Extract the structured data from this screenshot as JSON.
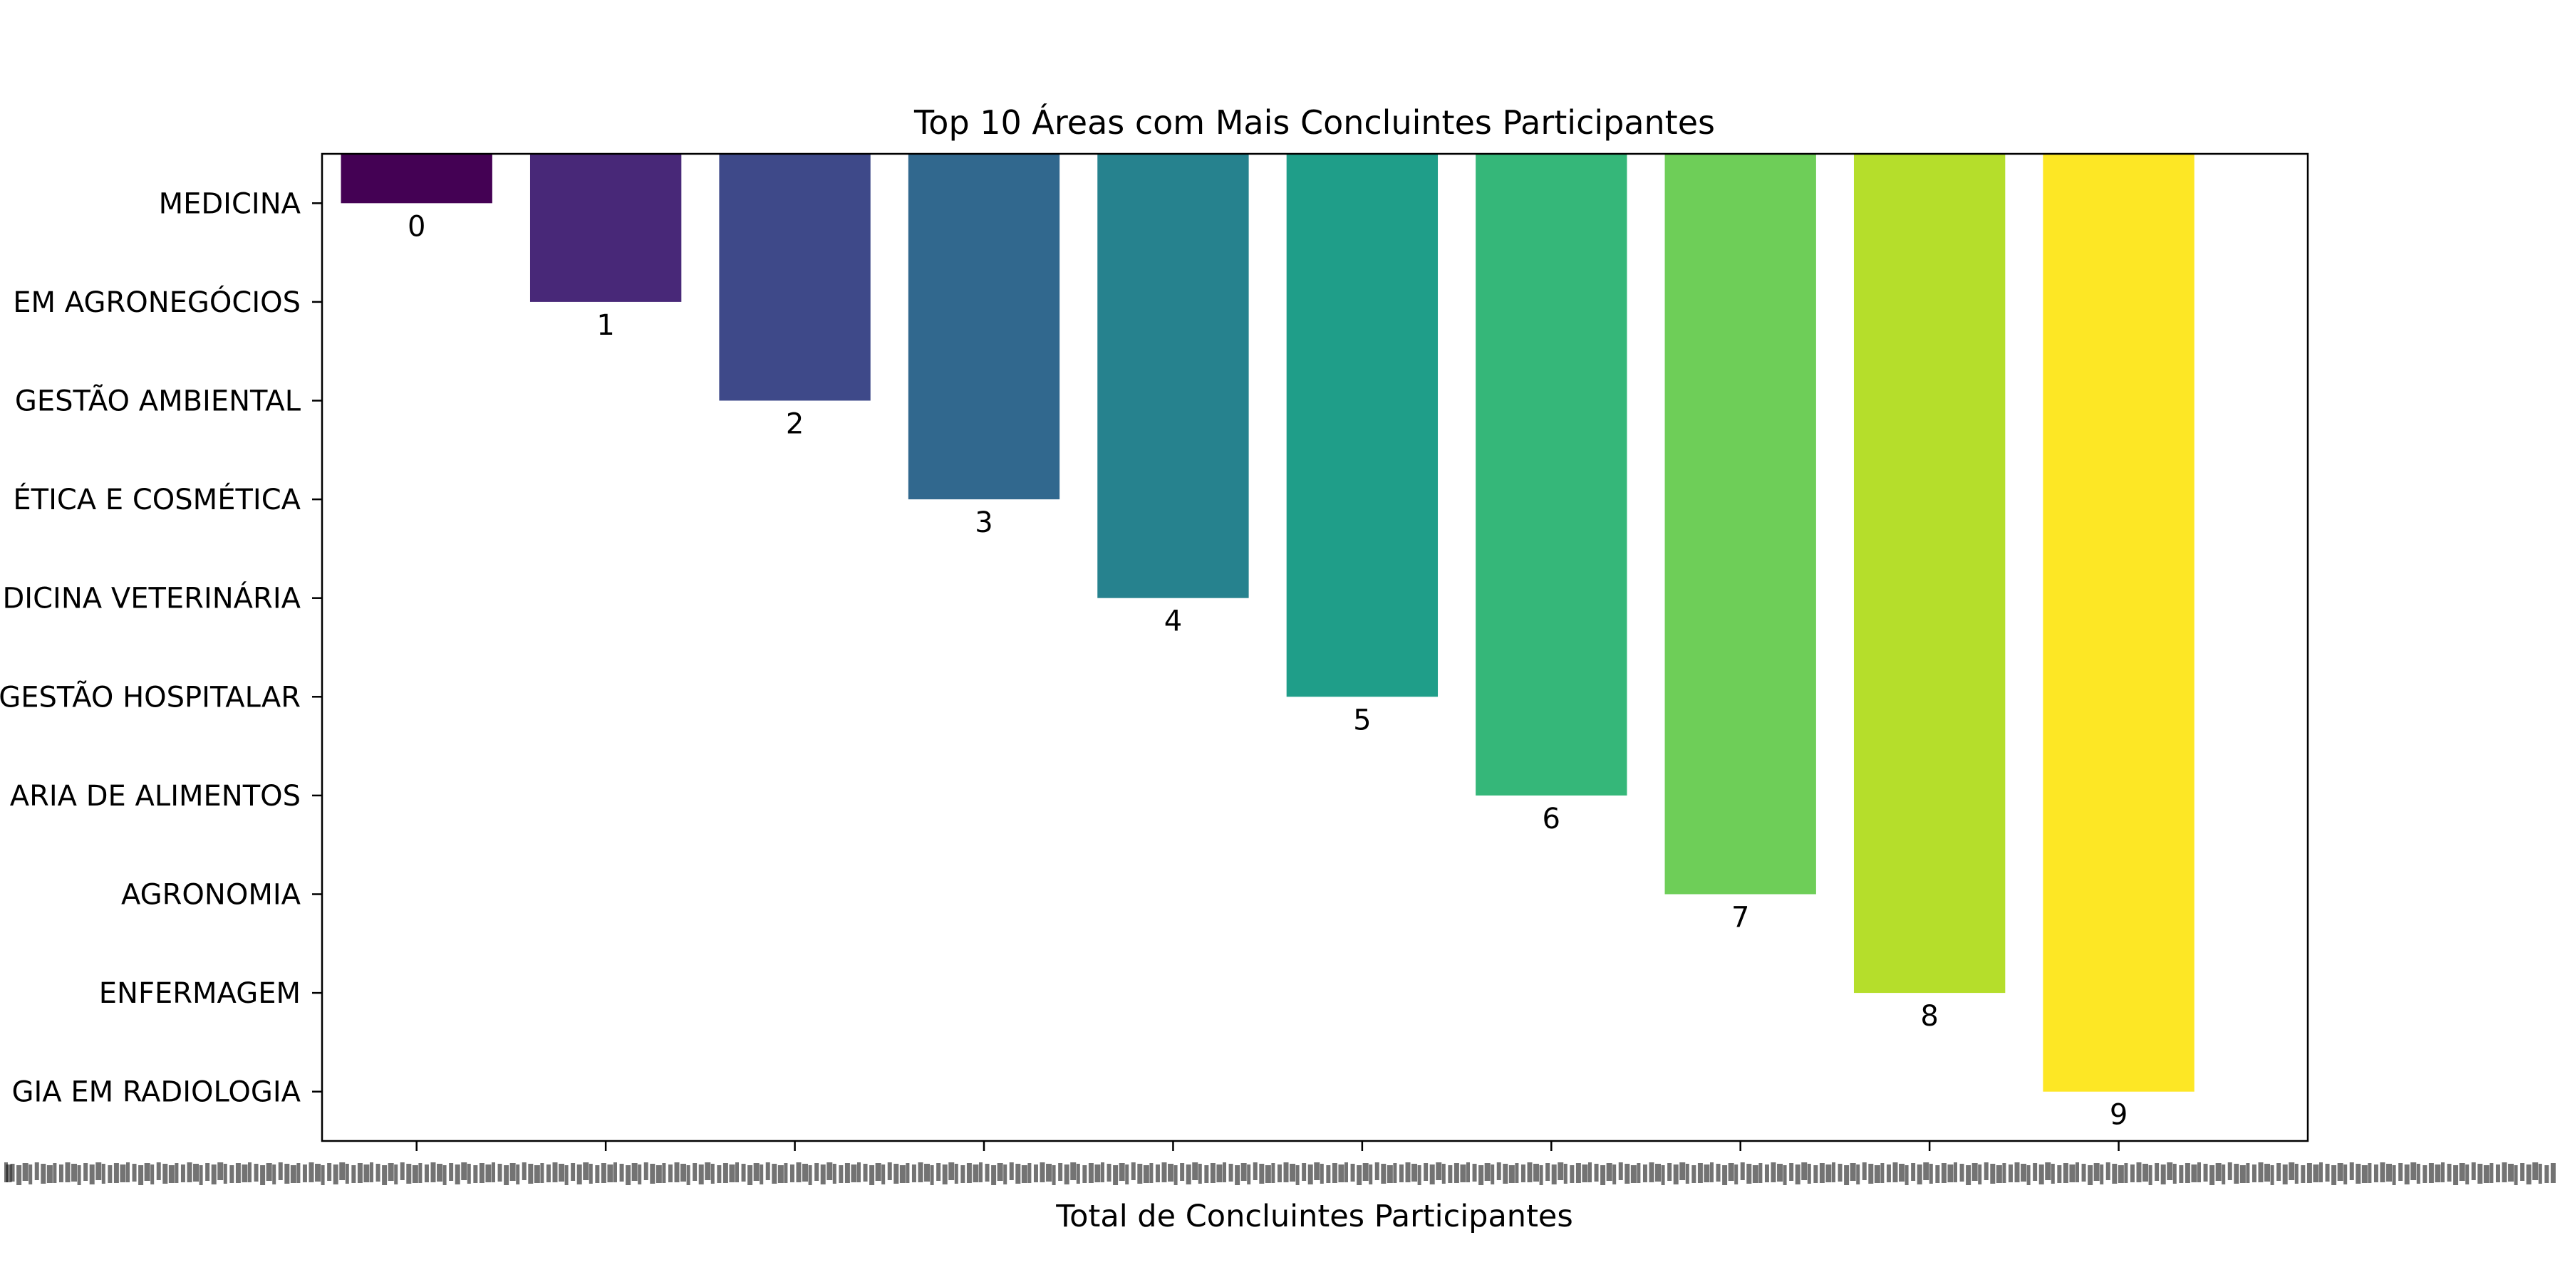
{
  "chart_data": {
    "type": "bar",
    "title": "Top 10 Áreas com Mais Concluintes Participantes",
    "xlabel": "Total de Concluintes Participantes",
    "ylabel": "",
    "categories": [
      "MEDICINA",
      "EM AGRONEGÓCIOS",
      "GESTÃO AMBIENTAL",
      "ÉTICA E COSMÉTICA",
      "DICINA VETERINÁRIA",
      "GESTÃO HOSPITALAR",
      "ARIA DE ALIMENTOS",
      "AGRONOMIA",
      "ENFERMAGEM",
      "GIA EM RADIOLOGIA"
    ],
    "values": [
      0,
      1,
      2,
      3,
      4,
      5,
      6,
      7,
      8,
      9
    ],
    "colors": [
      "#440154",
      "#482878",
      "#3e4989",
      "#31688e",
      "#26828e",
      "#1f9e89",
      "#35b779",
      "#6ece58",
      "#b5de2b",
      "#fde725"
    ],
    "ylim": [
      -0.5,
      9.5
    ],
    "y_inverted": true,
    "grid": false,
    "legend": "none",
    "x_tick_labels_overlapping": true
  }
}
